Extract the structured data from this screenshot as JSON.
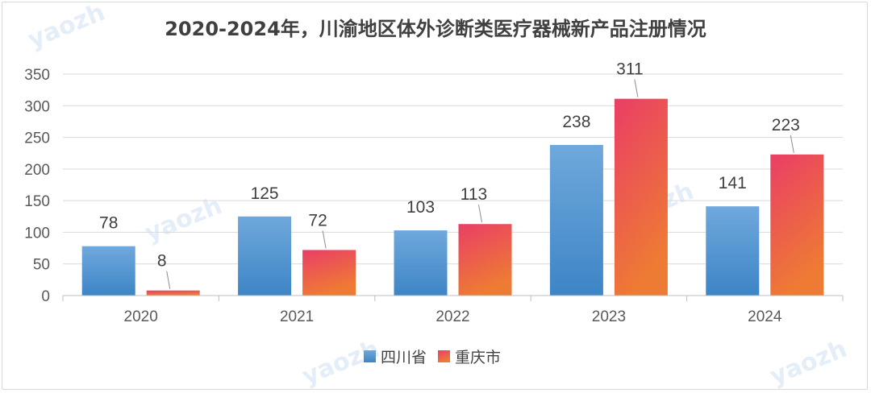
{
  "chart_data": {
    "type": "bar",
    "title": "2020-2024年，川渝地区体外诊断类医疗器械新产品注册情况",
    "xlabel": "",
    "ylabel": "",
    "categories": [
      "2020",
      "2021",
      "2022",
      "2023",
      "2024"
    ],
    "series": [
      {
        "name": "四川省",
        "values": [
          78,
          125,
          103,
          238,
          141
        ],
        "color_top": "#6fa8dc",
        "color_bottom": "#3d85c6"
      },
      {
        "name": "重庆市",
        "values": [
          8,
          72,
          113,
          311,
          223
        ],
        "color_top": "#ea3e66",
        "color_bottom": "#ee7b33"
      }
    ],
    "ylim": [
      0,
      350
    ],
    "yticks": [
      0,
      50,
      100,
      150,
      200,
      250,
      300,
      350
    ],
    "grid": true,
    "legend": "bottom-center"
  }
}
